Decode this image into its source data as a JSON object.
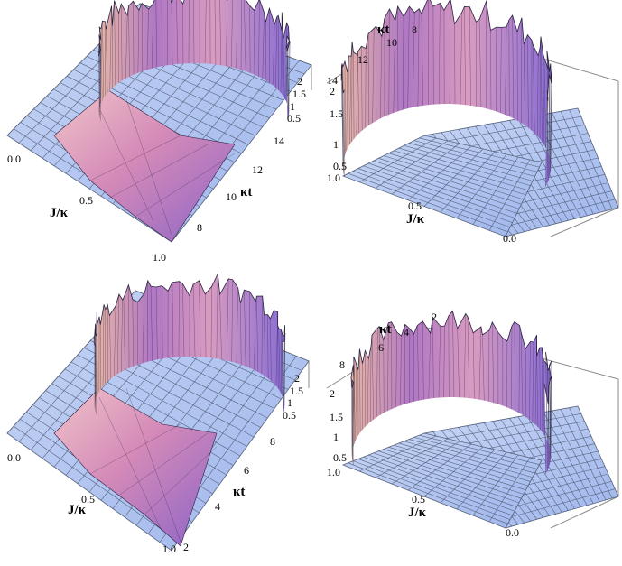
{
  "colors": {
    "floor_fill": "#b3c7f0",
    "floor_grid": "#56627c",
    "box_edge": "#8a8a8a",
    "surface_pink": "#d9a2bc",
    "surface_purple": "#9a6fc7",
    "surface_blue": "#7f8fe0",
    "surface_peach": "#e9b8a6",
    "surface_dark": "#2b2340"
  },
  "chart_data": [
    {
      "type": "surface3d",
      "panel": "top-left",
      "axis_j_label": "J/κ",
      "axis_t_label": "κt",
      "j_ticks": [
        "0.0",
        "0.5",
        "1.0"
      ],
      "t_ticks": [
        "8",
        "10",
        "12",
        "14"
      ],
      "z_ticks": [
        "0.5",
        "1",
        "1.5",
        "2"
      ],
      "j_range": [
        0,
        1
      ],
      "t_range": [
        7,
        15
      ],
      "z_range": [
        0,
        2
      ]
    },
    {
      "type": "surface3d",
      "panel": "top-right",
      "axis_j_label": "J/κ",
      "axis_t_label": "κt",
      "j_ticks": [
        "1.0",
        "0.5",
        "0.0"
      ],
      "t_ticks": [
        "14",
        "12",
        "10",
        "8"
      ],
      "z_ticks": [
        "0.5",
        "1",
        "1.5",
        "2"
      ],
      "j_range": [
        0,
        1
      ],
      "t_range": [
        7,
        15
      ],
      "z_range": [
        0,
        2
      ]
    },
    {
      "type": "surface3d",
      "panel": "bottom-left",
      "axis_j_label": "J/κ",
      "axis_t_label": "κt",
      "j_ticks": [
        "0.0",
        "0.5",
        "1.0"
      ],
      "t_ticks": [
        "2",
        "4",
        "6",
        "8"
      ],
      "z_ticks": [
        "0.5",
        "1",
        "1.5",
        "2"
      ],
      "j_range": [
        0,
        1
      ],
      "t_range": [
        1,
        9
      ],
      "z_range": [
        0,
        2
      ]
    },
    {
      "type": "surface3d",
      "panel": "bottom-right",
      "axis_j_label": "J/κ",
      "axis_t_label": "κt",
      "j_ticks": [
        "1.0",
        "0.5",
        "0.0"
      ],
      "t_ticks": [
        "8",
        "6",
        "4",
        "2"
      ],
      "z_ticks": [
        "0.5",
        "1",
        "1.5",
        "2"
      ],
      "j_range": [
        0,
        1
      ],
      "t_range": [
        1,
        9
      ],
      "z_range": [
        0,
        2
      ]
    }
  ]
}
